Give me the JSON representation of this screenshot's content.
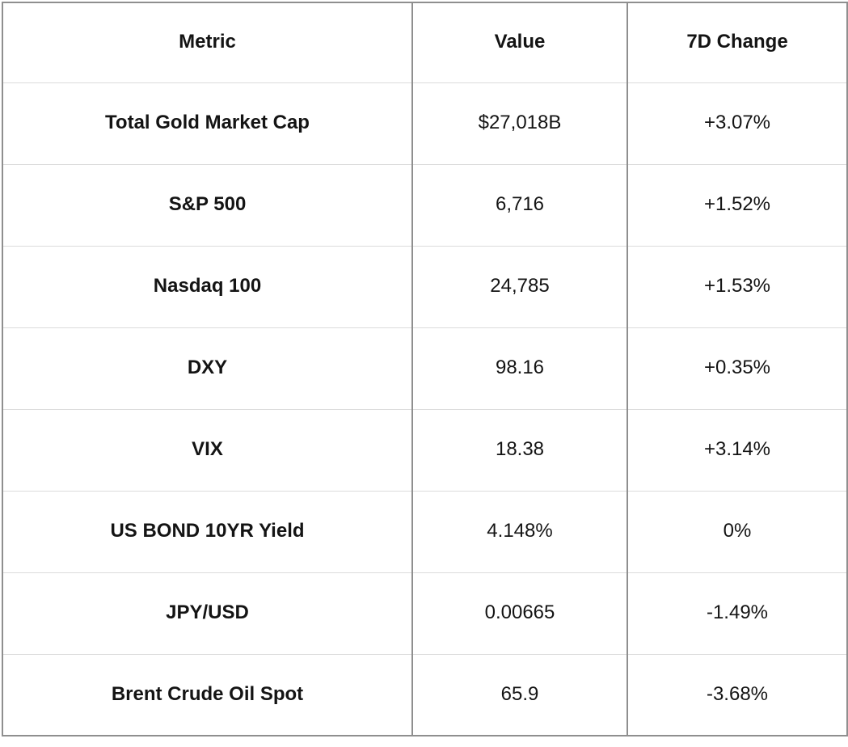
{
  "chart_data": {
    "type": "table",
    "title": "",
    "columns": [
      "Metric",
      "Value",
      "7D Change"
    ],
    "rows": [
      [
        "Total Gold Market Cap",
        "$27,018B",
        "+3.07%"
      ],
      [
        "S&P 500",
        "6,716",
        "+1.52%"
      ],
      [
        "Nasdaq 100",
        "24,785",
        "+1.53%"
      ],
      [
        "DXY",
        "98.16",
        "+0.35%"
      ],
      [
        "VIX",
        "18.38",
        "+3.14%"
      ],
      [
        "US BOND 10YR Yield",
        "4.148%",
        "0%"
      ],
      [
        "JPY/USD",
        "0.00665",
        "-1.49%"
      ],
      [
        "Brent Crude Oil Spot",
        "65.9",
        "-3.68%"
      ]
    ]
  },
  "colors": {
    "background": "#ffffff",
    "text": "#141414",
    "border_vertical": "#8f8f8f",
    "border_horizontal": "#dcdcdc"
  }
}
